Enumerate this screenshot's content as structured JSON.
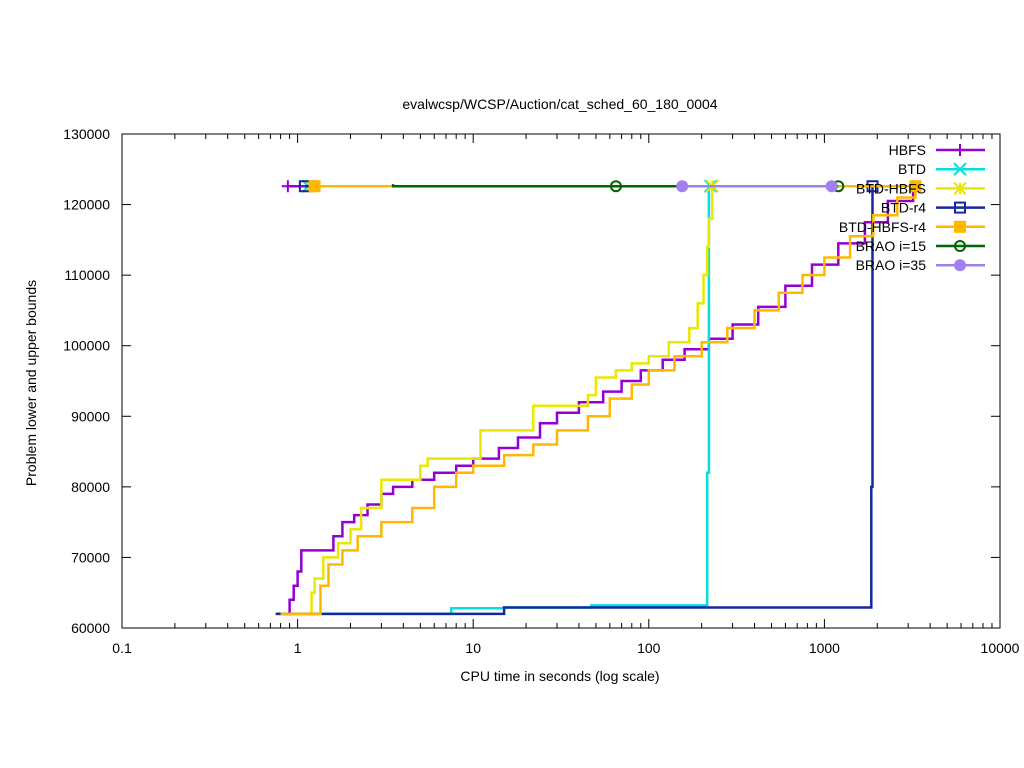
{
  "chart_data": {
    "type": "line",
    "title": "evalwcsp/WCSP/Auction/cat_sched_60_180_0004",
    "xlabel": "CPU time in seconds (log scale)",
    "ylabel": "Problem lower and upper bounds",
    "x_scale": "log",
    "xlim": [
      0.1,
      10000
    ],
    "ylim": [
      60000,
      130000
    ],
    "x_ticks": [
      0.1,
      1,
      10,
      100,
      1000,
      10000
    ],
    "x_tick_labels": [
      "0.1",
      "1",
      "10",
      "100",
      "1000",
      "10000"
    ],
    "y_ticks": [
      60000,
      70000,
      80000,
      90000,
      100000,
      110000,
      120000,
      130000
    ],
    "y_tick_labels": [
      "60000",
      "70000",
      "80000",
      "90000",
      "100000",
      "110000",
      "120000",
      "130000"
    ],
    "grid": false,
    "legend_position": "top-right",
    "series": [
      {
        "name": "HBFS",
        "color": "#9400d3",
        "marker": "plus",
        "upper": [
          [
            0.88,
            122600
          ],
          [
            3200,
            122600
          ]
        ],
        "upper_markers": [
          [
            0.88,
            122600
          ],
          [
            3200,
            122600
          ]
        ],
        "lower": [
          [
            0.85,
            62000
          ],
          [
            0.9,
            64000
          ],
          [
            0.95,
            66000
          ],
          [
            1.0,
            68000
          ],
          [
            1.05,
            71000
          ],
          [
            1.5,
            71000
          ],
          [
            1.6,
            73000
          ],
          [
            1.8,
            75000
          ],
          [
            2.1,
            76000
          ],
          [
            2.5,
            77500
          ],
          [
            3.0,
            79000
          ],
          [
            3.5,
            80000
          ],
          [
            4.5,
            81000
          ],
          [
            6.0,
            82000
          ],
          [
            8.0,
            83000
          ],
          [
            10,
            84000
          ],
          [
            14,
            85500
          ],
          [
            18,
            87000
          ],
          [
            24,
            89000
          ],
          [
            30,
            90500
          ],
          [
            40,
            92000
          ],
          [
            55,
            93500
          ],
          [
            70,
            95000
          ],
          [
            90,
            96500
          ],
          [
            120,
            98000
          ],
          [
            160,
            99500
          ],
          [
            220,
            101000
          ],
          [
            300,
            103000
          ],
          [
            420,
            105500
          ],
          [
            600,
            108500
          ],
          [
            850,
            111500
          ],
          [
            1200,
            114500
          ],
          [
            1700,
            117500
          ],
          [
            2300,
            120500
          ],
          [
            3200,
            122600
          ]
        ]
      },
      {
        "name": "BTD",
        "color": "#00e0e0",
        "marker": "cross",
        "upper": [
          [
            1.15,
            122600
          ],
          [
            225,
            122600
          ]
        ],
        "upper_markers": [
          [
            1.15,
            122600
          ],
          [
            225,
            122600
          ]
        ],
        "lower": [
          [
            0.75,
            62000
          ],
          [
            7.5,
            62000
          ],
          [
            7.5,
            62800
          ],
          [
            15,
            62800
          ],
          [
            15,
            62900
          ],
          [
            47,
            62900
          ],
          [
            47,
            63200
          ],
          [
            215,
            63200
          ],
          [
            215,
            82000
          ],
          [
            220,
            82000
          ],
          [
            220,
            122600
          ]
        ]
      },
      {
        "name": "BTD-HBFS",
        "color": "#e8e800",
        "marker": "asterisk",
        "upper": [
          [
            1.2,
            122600
          ],
          [
            230,
            122600
          ]
        ],
        "upper_markers": [
          [
            1.2,
            122600
          ],
          [
            230,
            122600
          ]
        ],
        "lower": [
          [
            1.15,
            62000
          ],
          [
            1.2,
            65000
          ],
          [
            1.25,
            67000
          ],
          [
            1.4,
            70000
          ],
          [
            1.7,
            72000
          ],
          [
            2.0,
            74000
          ],
          [
            2.3,
            77000
          ],
          [
            3.0,
            81000
          ],
          [
            5.0,
            83000
          ],
          [
            5.5,
            84000
          ],
          [
            10,
            84000
          ],
          [
            11,
            88000
          ],
          [
            20,
            88000
          ],
          [
            22,
            91500
          ],
          [
            40,
            91500
          ],
          [
            45,
            93000
          ],
          [
            50,
            95500
          ],
          [
            65,
            96500
          ],
          [
            80,
            97500
          ],
          [
            100,
            98500
          ],
          [
            130,
            100500
          ],
          [
            170,
            102500
          ],
          [
            190,
            106000
          ],
          [
            205,
            110000
          ],
          [
            215,
            114000
          ],
          [
            220,
            118000
          ],
          [
            230,
            122600
          ]
        ]
      },
      {
        "name": "BTD-r4",
        "color": "#1428a0",
        "marker": "square",
        "upper": [
          [
            1.1,
            122600
          ],
          [
            1880,
            122600
          ]
        ],
        "upper_markers": [
          [
            1.1,
            122600
          ],
          [
            1880,
            122600
          ]
        ],
        "lower": [
          [
            0.75,
            62000
          ],
          [
            15,
            62000
          ],
          [
            15,
            62900
          ],
          [
            1850,
            62900
          ],
          [
            1850,
            80000
          ],
          [
            1880,
            80000
          ],
          [
            1880,
            122600
          ]
        ]
      },
      {
        "name": "BTD-HBFS-r4",
        "color": "#ffb800",
        "marker": "filled-square",
        "upper": [
          [
            1.25,
            122600
          ],
          [
            3300,
            122600
          ]
        ],
        "upper_markers": [
          [
            1.25,
            122600
          ],
          [
            3300,
            122600
          ]
        ],
        "lower": [
          [
            0.8,
            62000
          ],
          [
            1.3,
            62000
          ],
          [
            1.35,
            66000
          ],
          [
            1.5,
            69000
          ],
          [
            1.8,
            71000
          ],
          [
            2.2,
            73000
          ],
          [
            3.0,
            75000
          ],
          [
            4.5,
            77000
          ],
          [
            6.0,
            80000
          ],
          [
            8.0,
            82000
          ],
          [
            10,
            83000
          ],
          [
            15,
            84500
          ],
          [
            22,
            86000
          ],
          [
            30,
            88000
          ],
          [
            45,
            90000
          ],
          [
            60,
            92500
          ],
          [
            80,
            94500
          ],
          [
            100,
            96500
          ],
          [
            140,
            98500
          ],
          [
            200,
            100500
          ],
          [
            280,
            102500
          ],
          [
            400,
            105000
          ],
          [
            550,
            107500
          ],
          [
            750,
            110000
          ],
          [
            1000,
            112500
          ],
          [
            1400,
            115500
          ],
          [
            1900,
            118500
          ],
          [
            2600,
            121000
          ],
          [
            3300,
            122600
          ]
        ]
      },
      {
        "name": "BRAO i=15",
        "color": "#006400",
        "marker": "circle",
        "upper": [
          [
            3.5,
            122900
          ],
          [
            3.5,
            122600
          ],
          [
            1200,
            122600
          ]
        ],
        "upper_markers": [
          [
            65,
            122600
          ],
          [
            1200,
            122600
          ]
        ],
        "lower": []
      },
      {
        "name": "BRAO i=35",
        "color": "#a080f0",
        "marker": "filled-circle",
        "upper": [
          [
            155,
            122600
          ],
          [
            1100,
            122600
          ]
        ],
        "upper_markers": [
          [
            155,
            122600
          ],
          [
            1100,
            122600
          ]
        ],
        "lower": []
      }
    ]
  }
}
